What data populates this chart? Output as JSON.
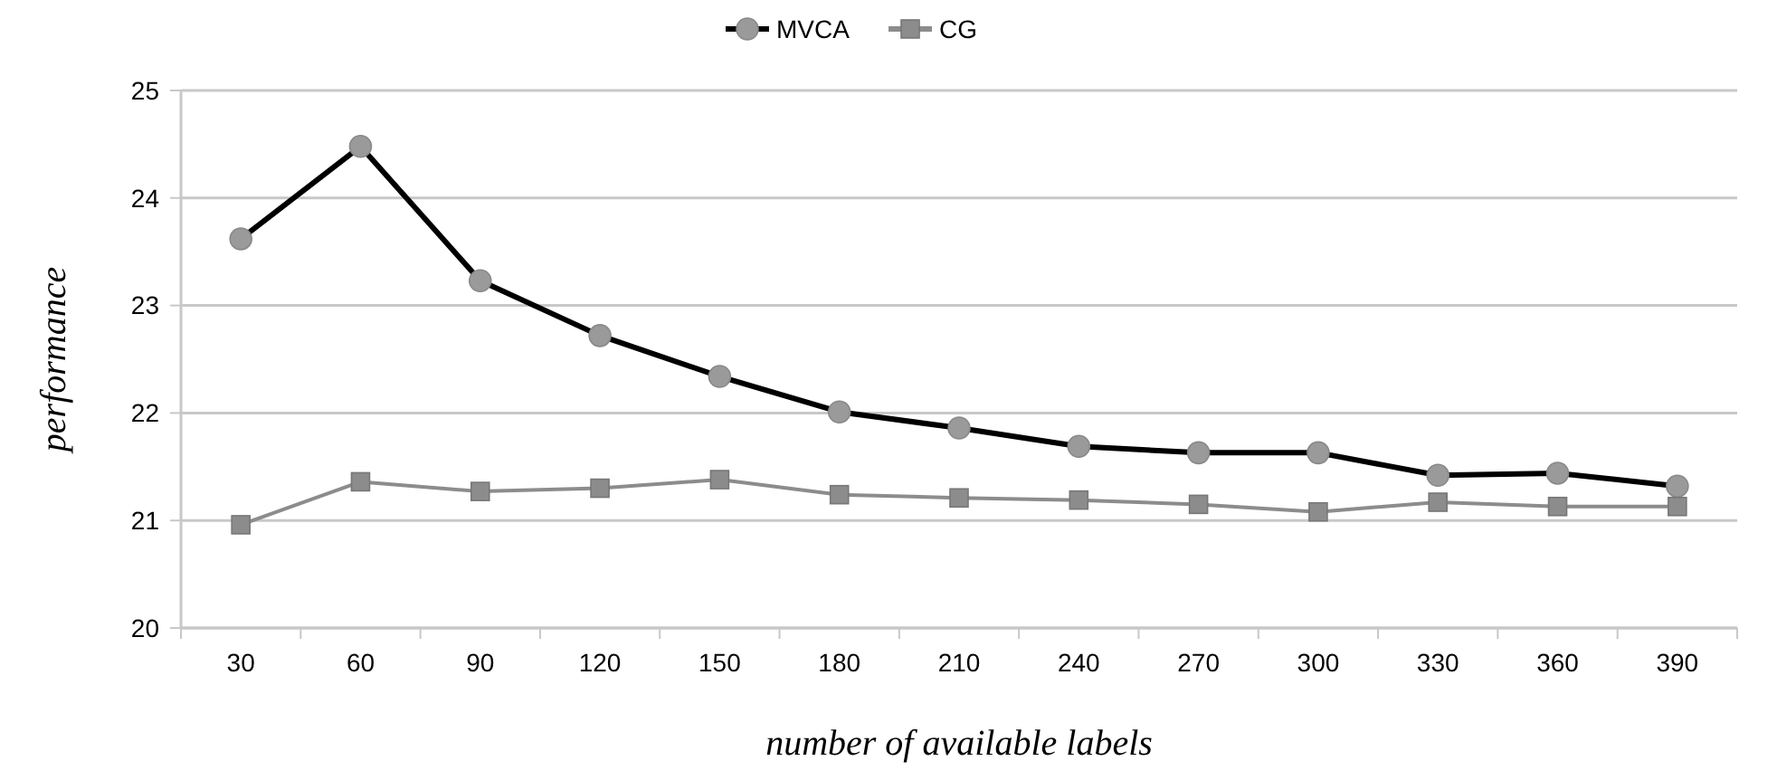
{
  "chart_data": {
    "type": "line",
    "xlabel": "number of available labels",
    "ylabel": "performance",
    "categories": [
      "30",
      "60",
      "90",
      "120",
      "150",
      "180",
      "210",
      "240",
      "270",
      "300",
      "330",
      "360",
      "390"
    ],
    "series": [
      {
        "name": "MVCA",
        "color": "#000000",
        "marker": "circle",
        "values": [
          23.62,
          24.48,
          23.23,
          22.72,
          22.34,
          22.01,
          21.86,
          21.69,
          21.63,
          21.63,
          21.42,
          21.44,
          21.32
        ]
      },
      {
        "name": "CG",
        "color": "#8c8c8c",
        "marker": "square",
        "values": [
          20.96,
          21.36,
          21.27,
          21.3,
          21.38,
          21.24,
          21.21,
          21.19,
          21.15,
          21.08,
          21.17,
          21.13,
          21.13
        ]
      }
    ],
    "ylim": [
      20,
      25
    ],
    "yticks": [
      20,
      21,
      22,
      23,
      24,
      25
    ],
    "grid": "y",
    "legend": "top"
  }
}
